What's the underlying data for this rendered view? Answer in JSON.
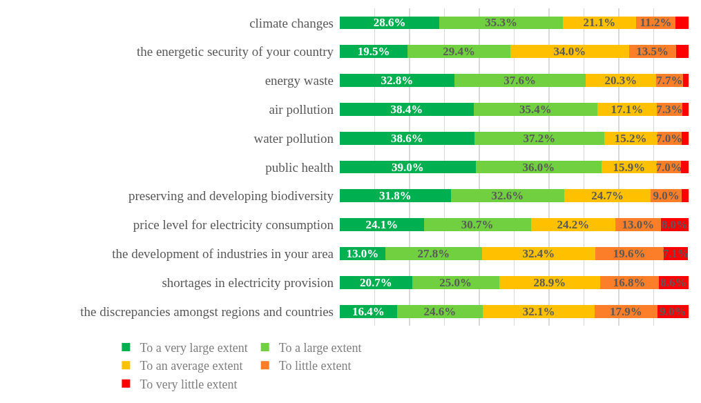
{
  "chart_data": {
    "type": "bar",
    "orientation": "horizontal",
    "stacked": true,
    "grid": "x",
    "legend": "bottom",
    "tick_labels": "y",
    "categories": [
      "climate changes",
      "the energetic security of your country",
      "energy waste",
      "air pollution",
      "water pollution",
      "public health",
      "preserving and developing biodiversity",
      "price level for electricity consumption",
      "the development of industries in your area",
      "shortages in electricity provision",
      "the discrepancies amongst regions and countries"
    ],
    "xlim": [
      0,
      100
    ],
    "series": [
      {
        "name": "To a very large extent",
        "color": "#00b050",
        "values": [
          28.6,
          19.5,
          32.8,
          38.4,
          38.6,
          39.0,
          31.8,
          24.1,
          13.0,
          20.7,
          16.4
        ],
        "value_labels": [
          "28.6%",
          "19.5%",
          "32.8%",
          "38.4%",
          "38.6%",
          "39.0%",
          "31.8%",
          "24.1%",
          "13.0%",
          "20.7%",
          "16.4%"
        ]
      },
      {
        "name": "To a large extent",
        "color": "#70d040",
        "values": [
          35.3,
          29.4,
          37.6,
          35.4,
          37.2,
          36.0,
          32.6,
          30.7,
          27.8,
          25.0,
          24.6
        ],
        "value_labels": [
          "35.3%",
          "29.4%",
          "37.6%",
          "35.4%",
          "37.2%",
          "36.0%",
          "32.6%",
          "30.7%",
          "27.8%",
          "25.0%",
          "24.6%"
        ]
      },
      {
        "name": "To an average extent",
        "color": "#ffc000",
        "values": [
          21.1,
          34.0,
          20.3,
          17.1,
          15.2,
          15.9,
          24.7,
          24.2,
          32.4,
          28.9,
          32.1
        ],
        "value_labels": [
          "21.1%",
          "34.0%",
          "20.3%",
          "17.1%",
          "15.2%",
          "15.9%",
          "24.7%",
          "24.2%",
          "32.4%",
          "28.9%",
          "32.1%"
        ]
      },
      {
        "name": "To little extent",
        "color": "#fd7e28",
        "values": [
          11.2,
          13.5,
          7.7,
          7.3,
          7.0,
          7.0,
          9.0,
          13.0,
          19.6,
          16.8,
          17.9
        ],
        "value_labels": [
          "11.2%",
          "13.5%",
          "7.7%",
          "7.3%",
          "7.0%",
          "7.0%",
          "9.0%",
          "13.0%",
          "19.6%",
          "16.8%",
          "17.9%"
        ]
      },
      {
        "name": "To very little extent",
        "color": "#ff0000",
        "values": [
          3.8,
          3.6,
          1.6,
          1.8,
          2.0,
          2.1,
          1.9,
          8.0,
          7.1,
          8.6,
          9.0
        ],
        "value_labels": [
          null,
          null,
          null,
          null,
          null,
          null,
          null,
          "8.0%",
          "7.1%",
          "8.6%",
          "9.0%"
        ]
      }
    ]
  }
}
